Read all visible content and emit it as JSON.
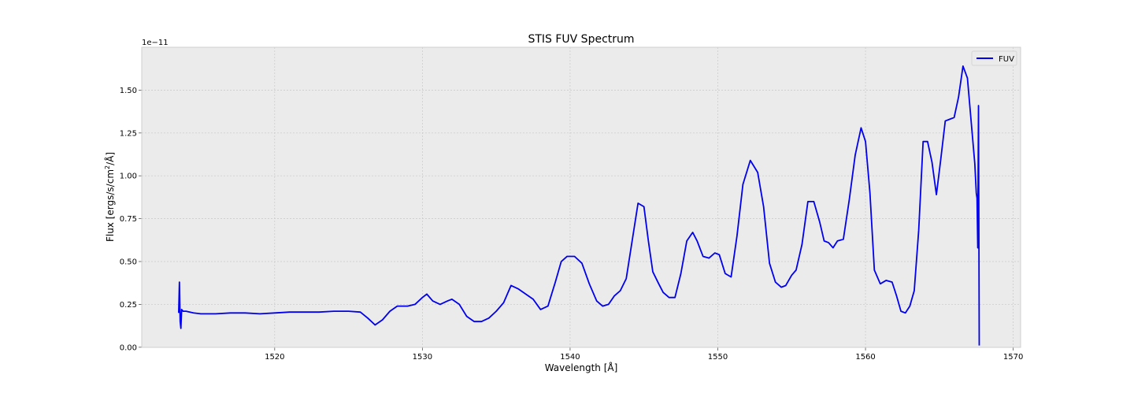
{
  "chart_data": {
    "type": "line",
    "title": "STIS FUV Spectrum",
    "xlabel": "Wavelength [Å]",
    "ylabel_main": "Flux [ergs/s/cm",
    "ylabel_sup": "2",
    "ylabel_tail": "/Å]",
    "offset_label": "1e−11",
    "xlim": [
      1511,
      1570.5
    ],
    "ylim": [
      -0.00085,
      1.75
    ],
    "xticks": [
      1520,
      1530,
      1540,
      1550,
      1560,
      1570
    ],
    "xtick_labels": [
      "1520",
      "1530",
      "1540",
      "1550",
      "1560",
      "1570"
    ],
    "yticks": [
      0.0,
      0.25,
      0.5,
      0.75,
      1.0,
      1.25,
      1.5
    ],
    "ytick_labels": [
      "0.00",
      "0.25",
      "0.50",
      "0.75",
      "1.00",
      "1.25",
      "1.50"
    ],
    "grid": true,
    "legend_position": "top-right",
    "series": [
      {
        "name": "FUV",
        "color": "#0000ee",
        "x": [
          1513.5,
          1513.55,
          1513.6,
          1513.65,
          1513.7,
          1513.8,
          1514.0,
          1514.5,
          1515.0,
          1516.0,
          1517.0,
          1518.0,
          1519.0,
          1520.0,
          1521.0,
          1522.0,
          1523.0,
          1524.0,
          1525.0,
          1525.8,
          1526.3,
          1526.8,
          1527.3,
          1527.8,
          1528.3,
          1529.0,
          1529.5,
          1530.0,
          1530.3,
          1530.7,
          1531.2,
          1531.7,
          1532.0,
          1532.5,
          1533.0,
          1533.5,
          1534.0,
          1534.5,
          1535.0,
          1535.5,
          1536.0,
          1536.5,
          1537.0,
          1537.5,
          1538.0,
          1538.5,
          1539.0,
          1539.4,
          1539.8,
          1540.3,
          1540.8,
          1541.3,
          1541.8,
          1542.2,
          1542.6,
          1543.0,
          1543.4,
          1543.8,
          1544.2,
          1544.6,
          1545.0,
          1545.3,
          1545.6,
          1546.0,
          1546.3,
          1546.7,
          1547.1,
          1547.5,
          1547.9,
          1548.3,
          1548.6,
          1549.0,
          1549.4,
          1549.8,
          1550.1,
          1550.5,
          1550.9,
          1551.3,
          1551.7,
          1552.2,
          1552.7,
          1553.1,
          1553.5,
          1553.9,
          1554.3,
          1554.6,
          1555.0,
          1555.3,
          1555.7,
          1556.1,
          1556.5,
          1556.9,
          1557.2,
          1557.5,
          1557.8,
          1558.1,
          1558.5,
          1558.9,
          1559.3,
          1559.7,
          1560.0,
          1560.3,
          1560.6,
          1561.0,
          1561.4,
          1561.8,
          1562.1,
          1562.4,
          1562.7,
          1563.0,
          1563.3,
          1563.6,
          1563.9,
          1564.2,
          1564.5,
          1564.8,
          1565.1,
          1565.4,
          1565.7,
          1566.0,
          1566.3,
          1566.6,
          1566.9,
          1567.2,
          1567.4,
          1567.5,
          1567.55,
          1567.6,
          1567.65,
          1567.7
        ],
        "y": [
          0.2,
          0.38,
          0.15,
          0.11,
          0.22,
          0.21,
          0.21,
          0.2,
          0.195,
          0.195,
          0.2,
          0.2,
          0.195,
          0.2,
          0.205,
          0.205,
          0.205,
          0.21,
          0.21,
          0.205,
          0.17,
          0.13,
          0.16,
          0.21,
          0.24,
          0.24,
          0.25,
          0.29,
          0.31,
          0.27,
          0.25,
          0.27,
          0.28,
          0.25,
          0.18,
          0.15,
          0.15,
          0.17,
          0.21,
          0.26,
          0.36,
          0.34,
          0.31,
          0.28,
          0.22,
          0.24,
          0.38,
          0.5,
          0.53,
          0.53,
          0.49,
          0.37,
          0.27,
          0.24,
          0.25,
          0.3,
          0.33,
          0.4,
          0.62,
          0.84,
          0.82,
          0.62,
          0.44,
          0.37,
          0.32,
          0.29,
          0.29,
          0.43,
          0.62,
          0.67,
          0.62,
          0.53,
          0.52,
          0.55,
          0.54,
          0.43,
          0.41,
          0.65,
          0.95,
          1.09,
          1.02,
          0.82,
          0.49,
          0.38,
          0.35,
          0.36,
          0.42,
          0.45,
          0.6,
          0.85,
          0.85,
          0.73,
          0.62,
          0.61,
          0.58,
          0.62,
          0.63,
          0.86,
          1.12,
          1.28,
          1.2,
          0.9,
          0.45,
          0.37,
          0.39,
          0.38,
          0.3,
          0.21,
          0.2,
          0.24,
          0.33,
          0.68,
          1.2,
          1.2,
          1.08,
          0.89,
          1.1,
          1.32,
          1.33,
          1.34,
          1.46,
          1.64,
          1.57,
          1.27,
          1.07,
          0.9,
          0.87,
          0.58,
          1.41,
          0.01
        ]
      }
    ]
  },
  "legend": {
    "label": "FUV"
  }
}
